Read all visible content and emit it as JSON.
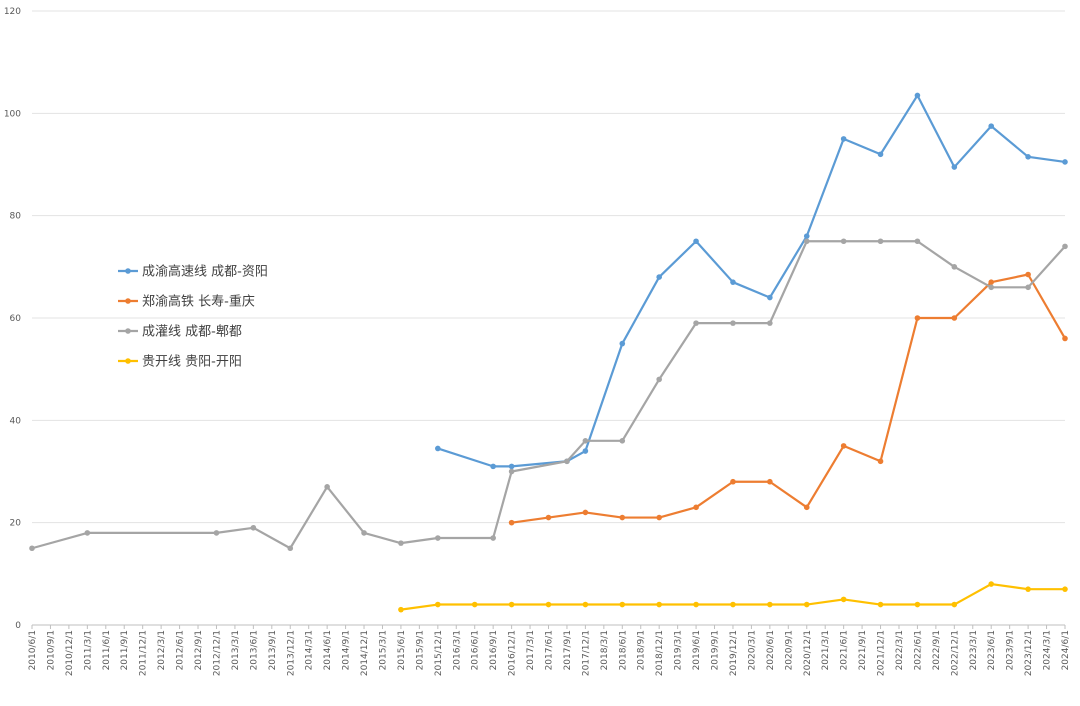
{
  "chart_data": {
    "type": "line",
    "title": "",
    "xlabel": "",
    "ylabel": "",
    "ylim": [
      0,
      120
    ],
    "yticks": [
      0,
      20,
      40,
      60,
      80,
      100,
      120
    ],
    "grid": true,
    "legend_position": "left",
    "categories": [
      "2010/6/1",
      "2010/9/1",
      "2010/12/1",
      "2011/3/1",
      "2011/6/1",
      "2011/9/1",
      "2011/12/1",
      "2012/3/1",
      "2012/6/1",
      "2012/9/1",
      "2012/12/1",
      "2013/3/1",
      "2013/6/1",
      "2013/9/1",
      "2013/12/1",
      "2014/3/1",
      "2014/6/1",
      "2014/9/1",
      "2014/12/1",
      "2015/3/1",
      "2015/6/1",
      "2015/9/1",
      "2015/12/1",
      "2016/3/1",
      "2016/6/1",
      "2016/9/1",
      "2016/12/1",
      "2017/3/1",
      "2017/6/1",
      "2017/9/1",
      "2017/12/1",
      "2018/3/1",
      "2018/6/1",
      "2018/9/1",
      "2018/12/1",
      "2019/3/1",
      "2019/6/1",
      "2019/9/1",
      "2019/12/1",
      "2020/3/1",
      "2020/6/1",
      "2020/9/1",
      "2020/12/1",
      "2021/3/1",
      "2021/6/1",
      "2021/9/1",
      "2021/12/1",
      "2022/3/1",
      "2022/6/1",
      "2022/9/1",
      "2022/12/1",
      "2023/3/1",
      "2023/6/1",
      "2023/9/1",
      "2023/12/1",
      "2024/3/1",
      "2024/6/1"
    ],
    "series": [
      {
        "name": "成渝高速线 成都-资阳",
        "color": "#5b9bd5",
        "points": [
          [
            "2015/12/1",
            34.5
          ],
          [
            "2016/9/1",
            31
          ],
          [
            "2016/12/1",
            31
          ],
          [
            "2017/9/1",
            32
          ],
          [
            "2017/12/1",
            34
          ],
          [
            "2018/6/1",
            55
          ],
          [
            "2018/12/1",
            68
          ],
          [
            "2019/6/1",
            75
          ],
          [
            "2019/12/1",
            67
          ],
          [
            "2020/6/1",
            64
          ],
          [
            "2020/12/1",
            76
          ],
          [
            "2021/6/1",
            95
          ],
          [
            "2021/12/1",
            92
          ],
          [
            "2022/6/1",
            103.5
          ],
          [
            "2022/12/1",
            89.5
          ],
          [
            "2023/6/1",
            97.5
          ],
          [
            "2023/12/1",
            91.5
          ],
          [
            "2024/6/1",
            90.5
          ]
        ]
      },
      {
        "name": "郑渝高铁 长寿-重庆",
        "color": "#ed7d31",
        "points": [
          [
            "2016/12/1",
            20
          ],
          [
            "2017/6/1",
            21
          ],
          [
            "2017/12/1",
            22
          ],
          [
            "2018/6/1",
            21
          ],
          [
            "2018/12/1",
            21
          ],
          [
            "2019/6/1",
            23
          ],
          [
            "2019/12/1",
            28
          ],
          [
            "2020/6/1",
            28
          ],
          [
            "2020/12/1",
            23
          ],
          [
            "2021/6/1",
            35
          ],
          [
            "2021/12/1",
            32
          ],
          [
            "2022/6/1",
            60
          ],
          [
            "2022/12/1",
            60
          ],
          [
            "2023/6/1",
            67
          ],
          [
            "2023/12/1",
            68.5
          ],
          [
            "2024/6/1",
            56
          ]
        ]
      },
      {
        "name": "成灌线 成都-郫都",
        "color": "#a5a5a5",
        "points": [
          [
            "2010/6/1",
            15
          ],
          [
            "2011/3/1",
            18
          ],
          [
            "2012/12/1",
            18
          ],
          [
            "2013/6/1",
            19
          ],
          [
            "2013/12/1",
            15
          ],
          [
            "2014/6/1",
            27
          ],
          [
            "2014/12/1",
            18
          ],
          [
            "2015/6/1",
            16
          ],
          [
            "2015/12/1",
            17
          ],
          [
            "2016/9/1",
            17
          ],
          [
            "2016/12/1",
            30
          ],
          [
            "2017/9/1",
            32
          ],
          [
            "2017/12/1",
            36
          ],
          [
            "2018/6/1",
            36
          ],
          [
            "2018/12/1",
            48
          ],
          [
            "2019/6/1",
            59
          ],
          [
            "2019/12/1",
            59
          ],
          [
            "2020/6/1",
            59
          ],
          [
            "2020/12/1",
            75
          ],
          [
            "2021/6/1",
            75
          ],
          [
            "2021/12/1",
            75
          ],
          [
            "2022/6/1",
            75
          ],
          [
            "2022/12/1",
            70
          ],
          [
            "2023/6/1",
            66
          ],
          [
            "2023/12/1",
            66
          ],
          [
            "2024/6/1",
            74
          ]
        ]
      },
      {
        "name": "贵开线 贵阳-开阳",
        "color": "#ffc000",
        "points": [
          [
            "2015/6/1",
            3
          ],
          [
            "2015/12/1",
            4
          ],
          [
            "2016/6/1",
            4
          ],
          [
            "2016/12/1",
            4
          ],
          [
            "2017/6/1",
            4
          ],
          [
            "2017/12/1",
            4
          ],
          [
            "2018/6/1",
            4
          ],
          [
            "2018/12/1",
            4
          ],
          [
            "2019/6/1",
            4
          ],
          [
            "2019/12/1",
            4
          ],
          [
            "2020/6/1",
            4
          ],
          [
            "2020/12/1",
            4
          ],
          [
            "2021/6/1",
            5
          ],
          [
            "2021/12/1",
            4
          ],
          [
            "2022/6/1",
            4
          ],
          [
            "2022/12/1",
            4
          ],
          [
            "2023/6/1",
            8
          ],
          [
            "2023/12/1",
            7
          ],
          [
            "2024/6/1",
            7
          ]
        ]
      }
    ]
  }
}
